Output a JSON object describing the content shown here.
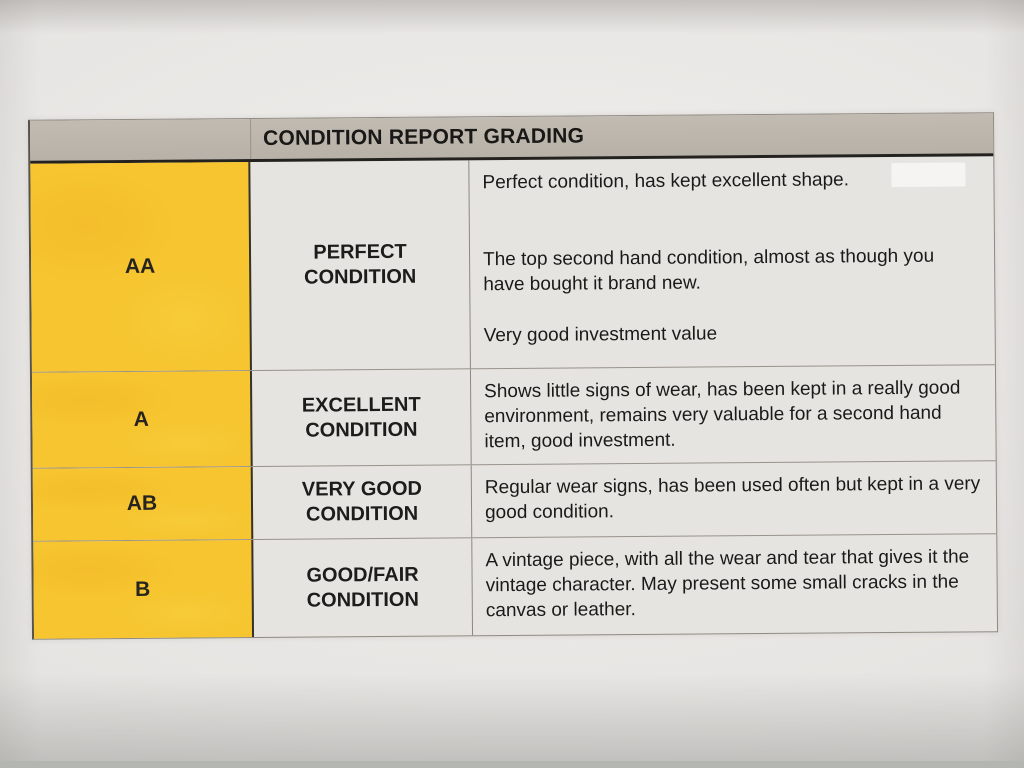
{
  "header": {
    "title": "CONDITION REPORT GRADING"
  },
  "rows": [
    {
      "grade": "AA",
      "condition": "PERFECT CONDITION",
      "description": [
        "Perfect condition, has kept excellent shape.",
        "The top second hand condition, almost as though you have bought it brand new.",
        "Very good investment value"
      ]
    },
    {
      "grade": "A",
      "condition": "EXCELLENT CONDITION",
      "description": [
        "Shows little signs of wear, has been kept in a really good environment, remains very valuable for a second hand item, good investment."
      ]
    },
    {
      "grade": "AB",
      "condition": "VERY GOOD CONDITION",
      "description": [
        "Regular wear signs, has been used often but kept in a very good condition."
      ]
    },
    {
      "grade": "B",
      "condition": "GOOD/FAIR CONDITION",
      "description": [
        "A vintage piece, with all the wear and tear that gives it the vintage character. May present some small cracks in the canvas or leather."
      ]
    }
  ],
  "colors": {
    "grade_cell_yellow": "#F6C52F",
    "header_gray": "#BAB4AB",
    "cell_background": "#E6E4E0",
    "paper": "#EBE9E6",
    "text": "#1B1A18",
    "header_divider_black": "#23221F"
  }
}
